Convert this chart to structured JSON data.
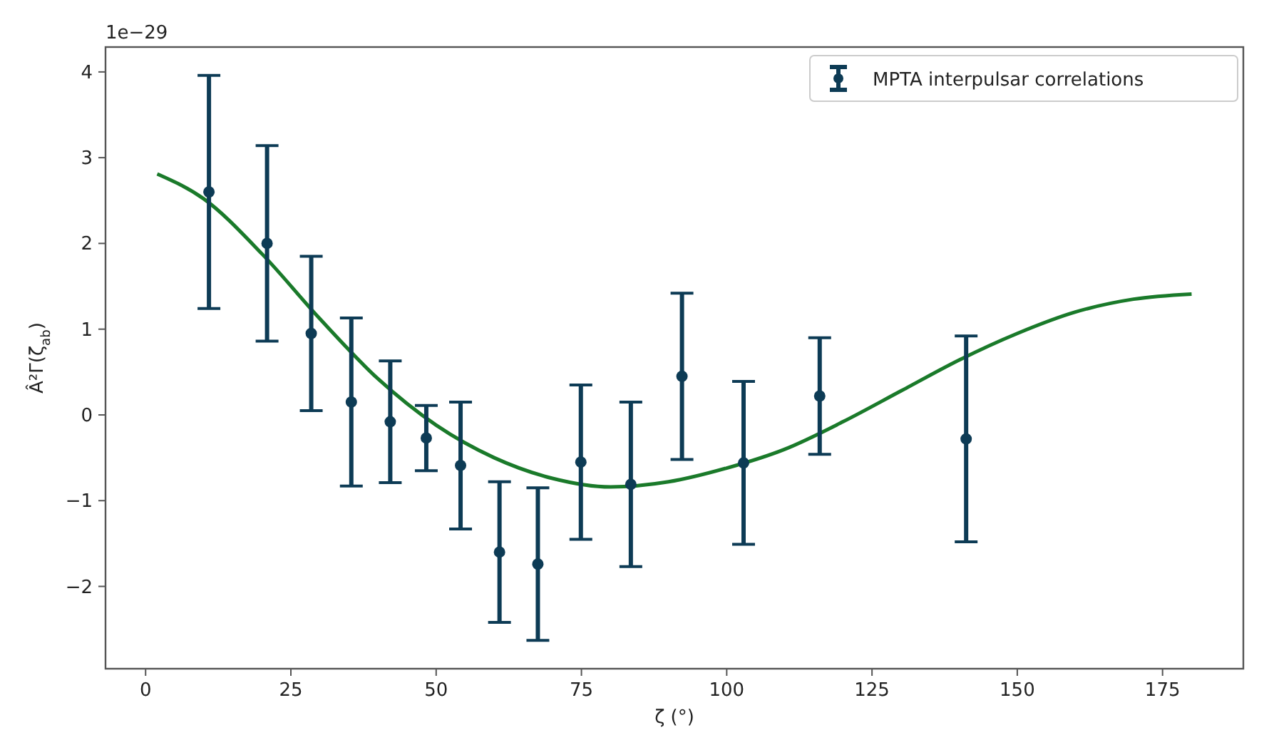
{
  "chart_data": {
    "type": "scatter",
    "xlabel": "ζ (°)",
    "ylabel": "Â²Γ(ζ$_{ab}$)",
    "annotations": [
      "1e−29"
    ],
    "xlim": [
      -6.9,
      188.9
    ],
    "xticks": [
      0,
      25,
      50,
      75,
      100,
      125,
      150,
      175
    ],
    "ylim": [
      -2.96,
      4.29
    ],
    "yticks": [
      {
        "value": -2,
        "label": "−2"
      },
      {
        "value": -1,
        "label": "−1"
      },
      0,
      1,
      2,
      3,
      4
    ],
    "grid": false,
    "legend": "top right",
    "marker": "circle",
    "series": [
      {
        "name": "MPTA interpulsar correlations",
        "color": "#0d3b55",
        "x": [
          10.9,
          20.9,
          28.5,
          35.4,
          42.1,
          48.3,
          54.2,
          60.9,
          67.5,
          74.9,
          83.5,
          92.3,
          102.9,
          116.0,
          141.2
        ],
        "values": [
          2.6,
          2.0,
          0.95,
          0.15,
          -0.08,
          -0.27,
          -0.59,
          -1.6,
          -1.74,
          -0.55,
          -0.81,
          0.45,
          -0.56,
          0.22,
          -0.28
        ],
        "errors": [
          1.36,
          1.14,
          0.9,
          0.98,
          0.71,
          0.38,
          0.74,
          0.82,
          0.89,
          0.9,
          0.96,
          0.97,
          0.95,
          0.68,
          1.2
        ]
      },
      {
        "type": "line",
        "color": "#1a7a2a",
        "marker": "none",
        "line_style": "solid",
        "x": [
          2,
          10,
          20,
          30,
          40,
          50,
          60,
          70,
          80,
          90,
          100,
          110,
          120,
          130,
          140,
          150,
          160,
          170,
          180
        ],
        "values": [
          2.81,
          2.52,
          1.88,
          1.12,
          0.42,
          -0.12,
          -0.5,
          -0.74,
          -0.84,
          -0.78,
          -0.62,
          -0.4,
          -0.08,
          0.28,
          0.64,
          0.95,
          1.2,
          1.35,
          1.41
        ]
      }
    ]
  }
}
